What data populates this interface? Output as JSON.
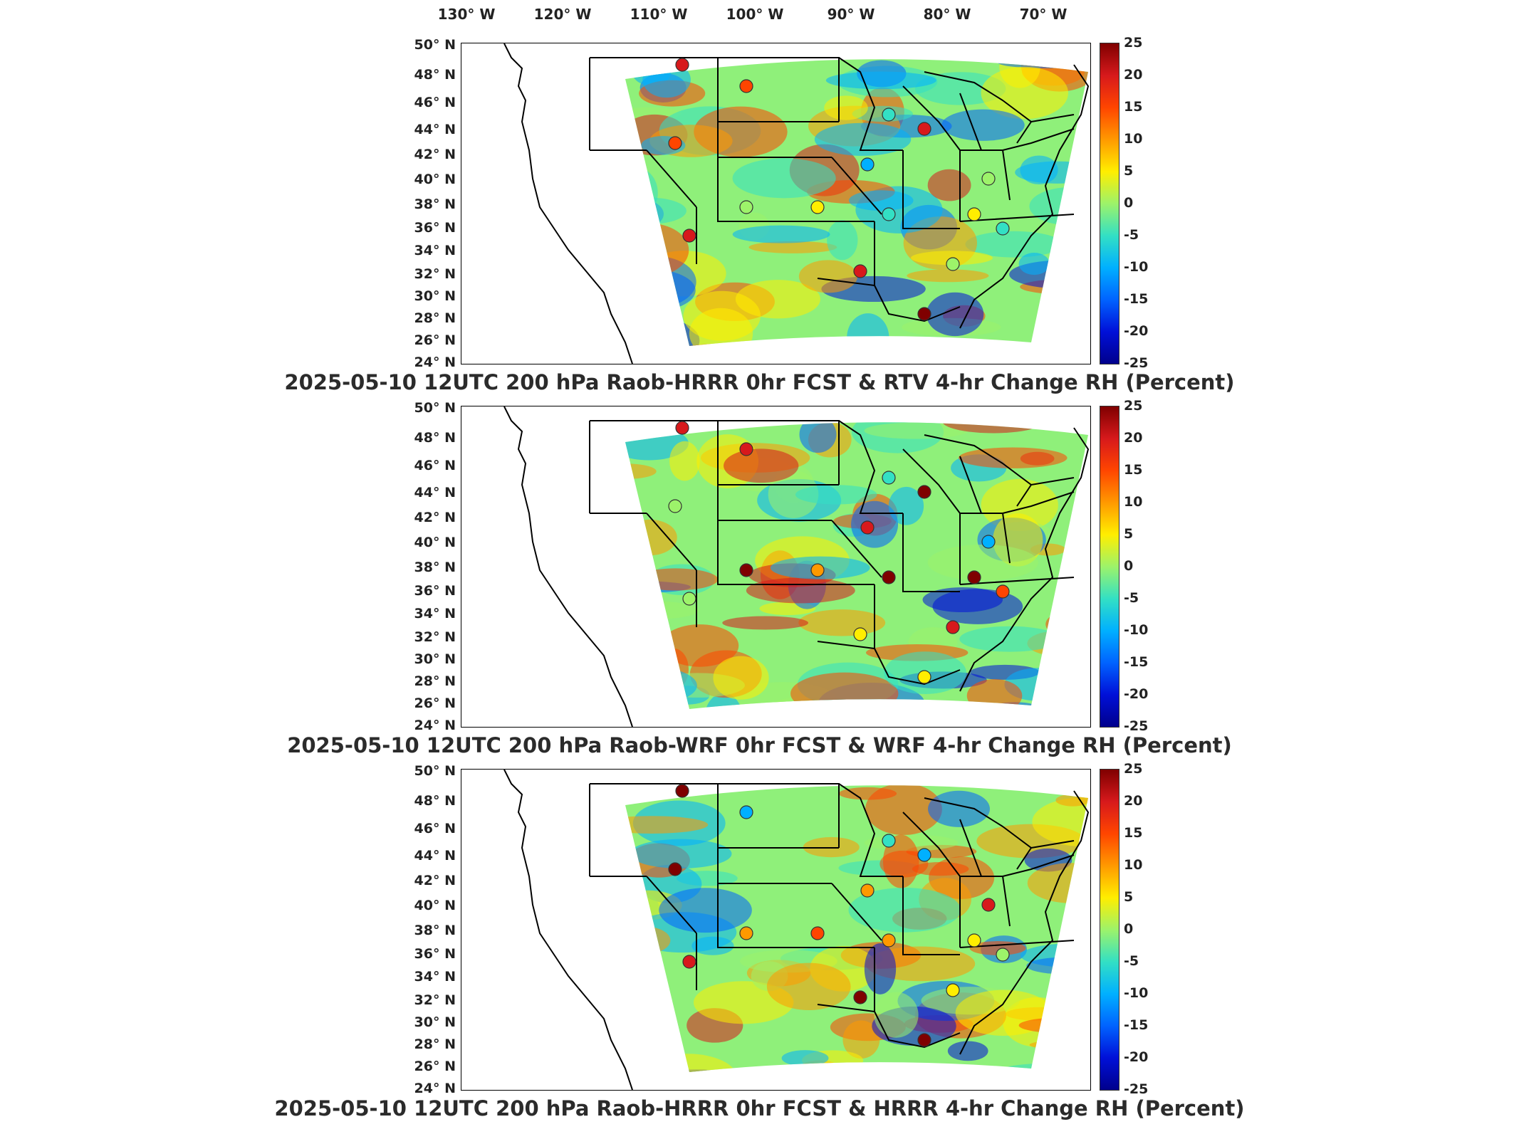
{
  "longitude_labels": [
    "130° W",
    "120° W",
    "110° W",
    "100° W",
    "90° W",
    "80° W",
    "70° W"
  ],
  "latitude_labels": [
    "50° N",
    "48° N",
    "46° N",
    "44° N",
    "42° N",
    "40° N",
    "38° N",
    "36° N",
    "34° N",
    "32° N",
    "30° N",
    "28° N",
    "26° N",
    "24° N"
  ],
  "colorbar": {
    "ticks": [
      "25",
      "20",
      "15",
      "10",
      "5",
      "0",
      "-5",
      "-10",
      "-15",
      "-20",
      "-25"
    ],
    "min": -25,
    "max": 25
  },
  "panels": [
    {
      "id": "hrrr-rtv",
      "caption": "2025-05-10 12UTC 200 hPa Raob-HRRR 0hr FCST & RTV 4-hr Change RH (Percent)"
    },
    {
      "id": "wrf",
      "caption": "2025-05-10 12UTC 200 hPa Raob-WRF 0hr FCST & WRF 4-hr Change RH (Percent)"
    },
    {
      "id": "hrrr",
      "caption": "2025-05-10 12UTC 200 hPa Raob-HRRR 0hr FCST & HRRR 4-hr Change RH (Percent)"
    }
  ]
}
